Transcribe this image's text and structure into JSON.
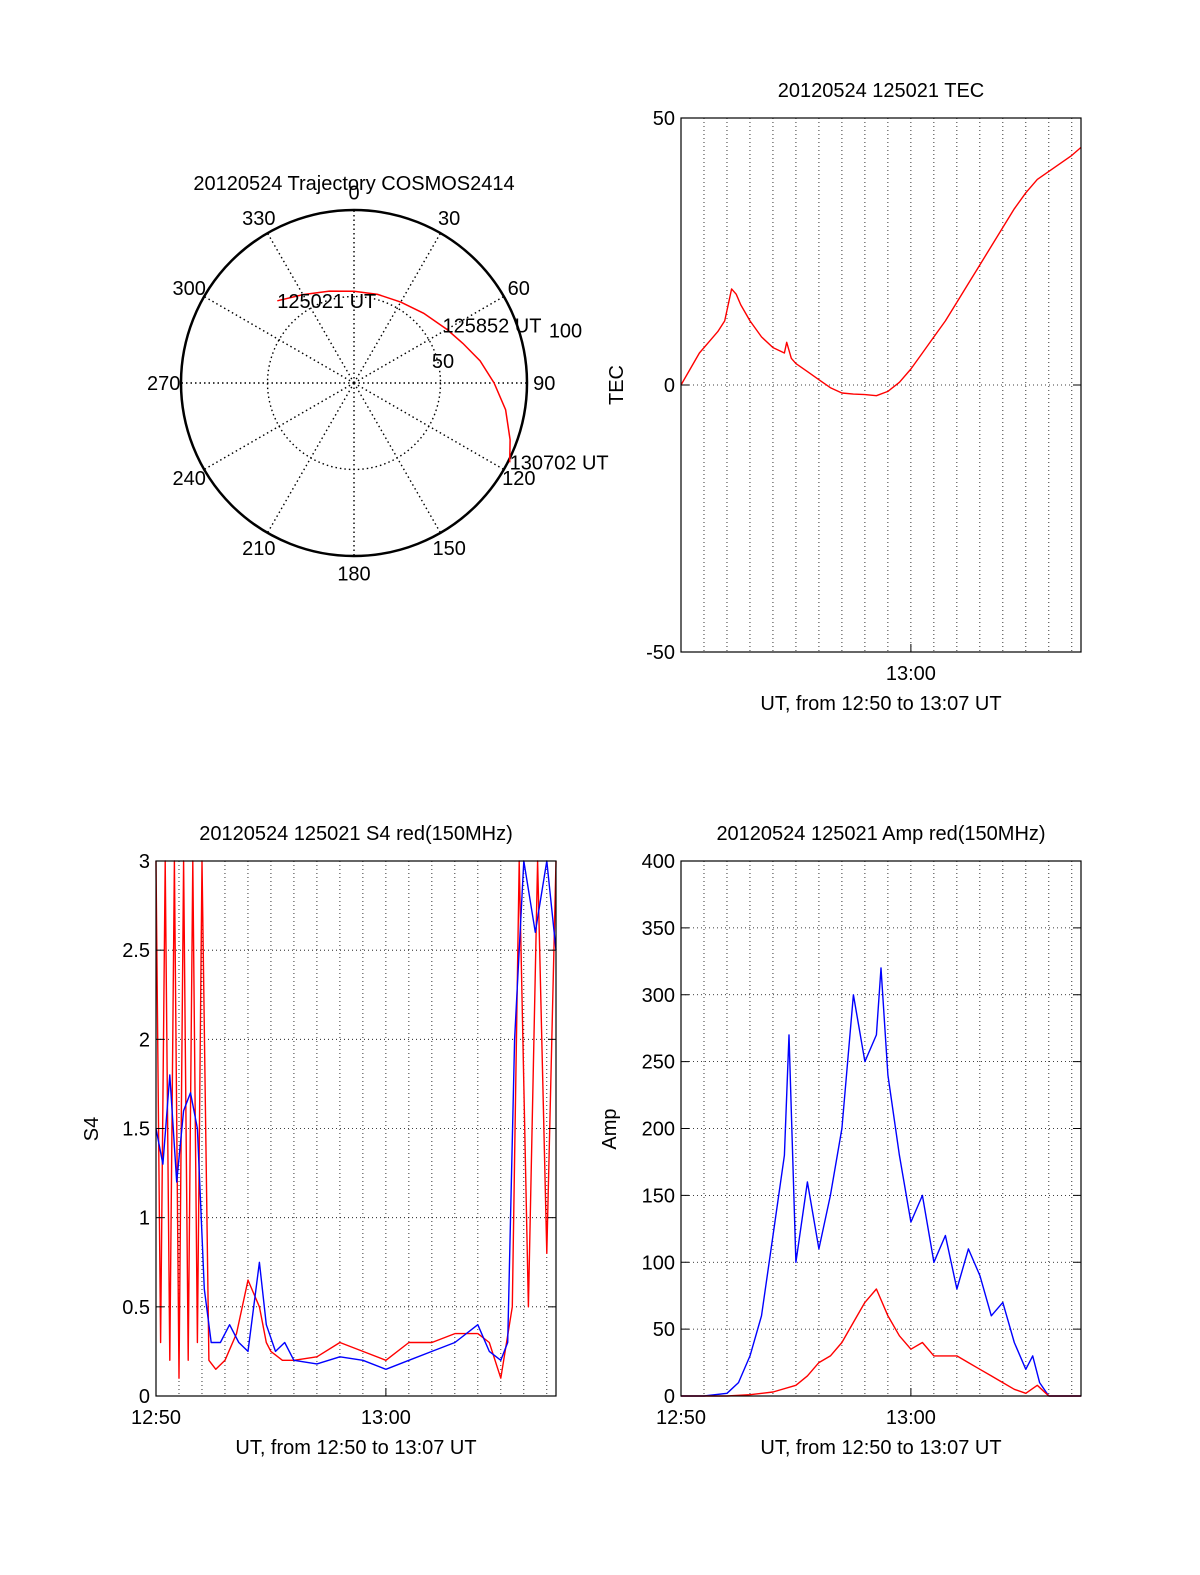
{
  "colors": {
    "red": "#ff0000",
    "blue": "#0000ff",
    "axis": "#000000",
    "grid": "#000000"
  },
  "chart_data": [
    {
      "id": "trajectory",
      "type": "polar",
      "title": "20120524 Trajectory COSMOS2414",
      "azimuth_ticks": [
        "0",
        "30",
        "60",
        "90",
        "120",
        "150",
        "180",
        "210",
        "240",
        "270",
        "300",
        "330"
      ],
      "radial_ticks": [
        "50",
        "100"
      ],
      "grid": true,
      "track": {
        "color": "red",
        "points": [
          [
            317,
            65
          ],
          [
            330,
            59
          ],
          [
            345,
            55
          ],
          [
            0,
            53
          ],
          [
            15,
            53
          ],
          [
            30,
            54
          ],
          [
            45,
            57
          ],
          [
            60,
            62
          ],
          [
            70,
            67
          ],
          [
            80,
            74
          ],
          [
            90,
            81
          ],
          [
            100,
            89
          ],
          [
            110,
            96
          ],
          [
            117,
            101
          ]
        ]
      },
      "annotations": [
        {
          "label": "125021 UT",
          "az": 317,
          "zen": 65
        },
        {
          "label": "125852 UT",
          "az": 57,
          "zen": 61
        },
        {
          "label": "130702 UT",
          "az": 117,
          "zen": 101
        }
      ]
    },
    {
      "id": "tec",
      "type": "line",
      "title": "20120524 125021 TEC",
      "xlabel": "UT, from 12:50 to 13:07 UT",
      "ylabel": "TEC",
      "xlim": [
        0,
        17.4
      ],
      "ylim": [
        -50,
        50
      ],
      "xticks": [
        {
          "value": 10,
          "label": "13:00"
        }
      ],
      "yticks": [
        {
          "value": -50,
          "label": "-50"
        },
        {
          "value": 0,
          "label": "0"
        },
        {
          "value": 50,
          "label": "50"
        }
      ],
      "grid": true,
      "series": [
        {
          "color": "red",
          "x": [
            0,
            0.4,
            0.8,
            1.2,
            1.6,
            1.9,
            2.1,
            2.2,
            2.4,
            2.6,
            3.0,
            3.5,
            4.0,
            4.5,
            4.6,
            4.8,
            5.0,
            5.5,
            6.0,
            6.5,
            7.0,
            7.5,
            8.0,
            8.5,
            9.0,
            9.5,
            10.0,
            10.5,
            11.0,
            11.5,
            12.0,
            12.5,
            13.0,
            13.5,
            14.0,
            14.5,
            15.0,
            15.5,
            16.0,
            16.5,
            17.0,
            17.4
          ],
          "y": [
            0,
            3,
            6,
            8,
            10,
            12,
            16,
            18,
            17,
            15,
            12,
            9,
            7,
            6,
            8,
            5,
            4,
            2.5,
            1,
            -0.5,
            -1.5,
            -1.7,
            -1.8,
            -2,
            -1.2,
            0.5,
            3,
            6,
            9,
            12,
            15.5,
            19,
            22.5,
            26,
            29.5,
            33,
            36,
            38.5,
            40,
            41.5,
            43,
            44.5
          ]
        }
      ]
    },
    {
      "id": "s4",
      "type": "line",
      "title": "20120524 125021 S4 red(150MHz)",
      "xlabel": "UT, from 12:50 to 13:07 UT",
      "ylabel": "S4",
      "xlim": [
        0,
        17.4
      ],
      "ylim": [
        0,
        3
      ],
      "xticks": [
        {
          "value": 0,
          "label": "12:50"
        },
        {
          "value": 10,
          "label": "13:00"
        }
      ],
      "yticks": [
        {
          "value": 0,
          "label": "0"
        },
        {
          "value": 0.5,
          "label": "0.5"
        },
        {
          "value": 1,
          "label": "1"
        },
        {
          "value": 1.5,
          "label": "1.5"
        },
        {
          "value": 2,
          "label": "2"
        },
        {
          "value": 2.5,
          "label": "2.5"
        },
        {
          "value": 3,
          "label": "3"
        }
      ],
      "grid": true,
      "series": [
        {
          "color": "red",
          "x": [
            0,
            0.2,
            0.4,
            0.6,
            0.8,
            1.0,
            1.2,
            1.4,
            1.6,
            1.8,
            2.0,
            2.3,
            2.6,
            3.0,
            3.5,
            4.0,
            4.5,
            4.8,
            5.0,
            5.5,
            6.0,
            7.0,
            8.0,
            9.0,
            10.0,
            11.0,
            12.0,
            13.0,
            14.0,
            14.5,
            15.0,
            15.5,
            15.8,
            16.2,
            16.6,
            17.0,
            17.4
          ],
          "y": [
            3,
            0.3,
            3,
            0.2,
            3,
            0.1,
            3,
            0.2,
            3,
            0.3,
            3,
            0.2,
            0.15,
            0.2,
            0.35,
            0.65,
            0.5,
            0.3,
            0.25,
            0.2,
            0.2,
            0.22,
            0.3,
            0.25,
            0.2,
            0.3,
            0.3,
            0.35,
            0.35,
            0.3,
            0.1,
            0.5,
            3,
            0.5,
            3,
            0.8,
            3
          ]
        },
        {
          "color": "blue",
          "x": [
            0,
            0.3,
            0.6,
            0.9,
            1.2,
            1.5,
            1.8,
            2.1,
            2.4,
            2.8,
            3.2,
            3.6,
            4.0,
            4.5,
            4.8,
            5.2,
            5.6,
            6.0,
            7.0,
            8.0,
            9.0,
            10.0,
            11.0,
            12.0,
            13.0,
            14.0,
            14.5,
            15.0,
            15.3,
            15.6,
            16.0,
            16.5,
            17.0,
            17.4
          ],
          "y": [
            1.5,
            1.3,
            1.8,
            1.2,
            1.6,
            1.7,
            1.5,
            0.6,
            0.3,
            0.3,
            0.4,
            0.3,
            0.25,
            0.75,
            0.4,
            0.25,
            0.3,
            0.2,
            0.18,
            0.22,
            0.2,
            0.15,
            0.2,
            0.25,
            0.3,
            0.4,
            0.25,
            0.2,
            0.3,
            2.0,
            3,
            2.6,
            3,
            2.5
          ]
        }
      ]
    },
    {
      "id": "amp",
      "type": "line",
      "title": "20120524 125021 Amp red(150MHz)",
      "xlabel": "UT, from 12:50 to 13:07 UT",
      "ylabel": "Amp",
      "xlim": [
        0,
        17.4
      ],
      "ylim": [
        0,
        400
      ],
      "xticks": [
        {
          "value": 0,
          "label": "12:50"
        },
        {
          "value": 10,
          "label": "13:00"
        }
      ],
      "yticks": [
        {
          "value": 0,
          "label": "0"
        },
        {
          "value": 50,
          "label": "50"
        },
        {
          "value": 100,
          "label": "100"
        },
        {
          "value": 150,
          "label": "150"
        },
        {
          "value": 200,
          "label": "200"
        },
        {
          "value": 250,
          "label": "250"
        },
        {
          "value": 300,
          "label": "300"
        },
        {
          "value": 350,
          "label": "350"
        },
        {
          "value": 400,
          "label": "400"
        }
      ],
      "grid": true,
      "series": [
        {
          "color": "blue",
          "x": [
            0,
            1.0,
            2.0,
            2.5,
            3.0,
            3.5,
            4.0,
            4.5,
            4.7,
            5.0,
            5.5,
            6.0,
            6.5,
            7.0,
            7.5,
            8.0,
            8.5,
            8.7,
            9.0,
            9.5,
            10.0,
            10.5,
            11.0,
            11.5,
            12.0,
            12.5,
            13.0,
            13.5,
            14.0,
            14.5,
            15.0,
            15.3,
            15.6,
            16.0,
            17.4
          ],
          "y": [
            0,
            0,
            2,
            10,
            30,
            60,
            120,
            180,
            270,
            100,
            160,
            110,
            150,
            200,
            300,
            250,
            270,
            320,
            240,
            180,
            130,
            150,
            100,
            120,
            80,
            110,
            90,
            60,
            70,
            40,
            20,
            30,
            10,
            0,
            0
          ]
        },
        {
          "color": "red",
          "x": [
            0,
            2.0,
            3.0,
            4.0,
            5.0,
            5.5,
            6.0,
            6.5,
            7.0,
            7.5,
            8.0,
            8.5,
            9.0,
            9.5,
            10.0,
            10.5,
            11.0,
            12.0,
            12.5,
            13.0,
            13.5,
            14.0,
            14.5,
            15.0,
            15.5,
            16.0,
            17.4
          ],
          "y": [
            0,
            0,
            1,
            3,
            8,
            15,
            25,
            30,
            40,
            55,
            70,
            80,
            60,
            45,
            35,
            40,
            30,
            30,
            25,
            20,
            15,
            10,
            5,
            2,
            8,
            0,
            0
          ]
        }
      ]
    }
  ]
}
